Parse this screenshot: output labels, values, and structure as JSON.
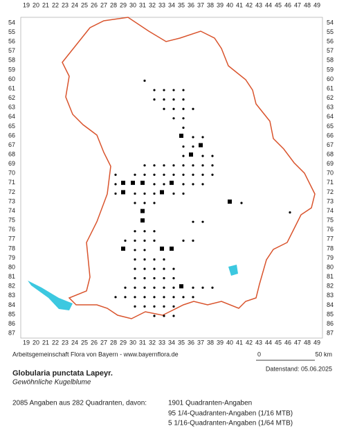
{
  "header": {
    "columns": [
      19,
      20,
      21,
      22,
      23,
      24,
      25,
      26,
      27,
      28,
      29,
      30,
      31,
      32,
      33,
      34,
      35,
      36,
      37,
      38,
      39,
      40,
      41,
      42,
      43,
      44,
      45,
      46,
      47,
      48,
      49
    ],
    "rows": [
      54,
      55,
      56,
      57,
      58,
      59,
      60,
      61,
      62,
      63,
      64,
      65,
      66,
      67,
      68,
      69,
      70,
      71,
      72,
      73,
      74,
      75,
      76,
      77,
      78,
      79,
      80,
      81,
      82,
      83,
      84,
      85,
      86,
      87
    ]
  },
  "map": {
    "dots": [
      [
        31,
        60
      ],
      [
        32,
        61
      ],
      [
        33,
        61
      ],
      [
        34,
        61
      ],
      [
        35,
        61
      ],
      [
        32,
        62
      ],
      [
        33,
        62
      ],
      [
        34,
        62
      ],
      [
        35,
        62
      ],
      [
        33,
        63
      ],
      [
        34,
        63
      ],
      [
        35,
        63
      ],
      [
        36,
        63
      ],
      [
        34,
        64
      ],
      [
        35,
        64
      ],
      [
        35,
        65
      ],
      [
        36,
        66
      ],
      [
        37,
        66
      ],
      [
        35,
        67
      ],
      [
        36,
        67
      ],
      [
        35,
        68
      ],
      [
        37,
        68
      ],
      [
        38,
        68
      ],
      [
        31,
        69
      ],
      [
        32,
        69
      ],
      [
        33,
        69
      ],
      [
        34,
        69
      ],
      [
        35,
        69
      ],
      [
        36,
        69
      ],
      [
        37,
        69
      ],
      [
        38,
        69
      ],
      [
        28,
        70
      ],
      [
        30,
        70
      ],
      [
        31,
        70
      ],
      [
        32,
        70
      ],
      [
        33,
        70
      ],
      [
        34,
        70
      ],
      [
        35,
        70
      ],
      [
        36,
        70
      ],
      [
        37,
        70
      ],
      [
        38,
        70
      ],
      [
        28,
        71
      ],
      [
        32,
        71
      ],
      [
        33,
        71
      ],
      [
        35,
        71
      ],
      [
        36,
        71
      ],
      [
        37,
        71
      ],
      [
        28,
        72
      ],
      [
        30,
        72
      ],
      [
        31,
        72
      ],
      [
        32,
        72
      ],
      [
        34,
        72
      ],
      [
        35,
        72
      ],
      [
        30,
        73
      ],
      [
        31,
        73
      ],
      [
        32,
        73
      ],
      [
        41,
        73
      ],
      [
        46,
        74
      ],
      [
        36,
        75
      ],
      [
        37,
        75
      ],
      [
        30,
        76
      ],
      [
        31,
        76
      ],
      [
        32,
        76
      ],
      [
        29,
        77
      ],
      [
        30,
        77
      ],
      [
        31,
        77
      ],
      [
        32,
        77
      ],
      [
        35,
        77
      ],
      [
        36,
        77
      ],
      [
        30,
        78
      ],
      [
        31,
        78
      ],
      [
        30,
        79
      ],
      [
        31,
        79
      ],
      [
        32,
        79
      ],
      [
        33,
        79
      ],
      [
        30,
        80
      ],
      [
        31,
        80
      ],
      [
        32,
        80
      ],
      [
        33,
        80
      ],
      [
        34,
        80
      ],
      [
        30,
        81
      ],
      [
        31,
        81
      ],
      [
        32,
        81
      ],
      [
        33,
        81
      ],
      [
        34,
        81
      ],
      [
        29,
        82
      ],
      [
        30,
        82
      ],
      [
        31,
        82
      ],
      [
        32,
        82
      ],
      [
        33,
        82
      ],
      [
        34,
        82
      ],
      [
        36,
        82
      ],
      [
        37,
        82
      ],
      [
        38,
        82
      ],
      [
        28,
        83
      ],
      [
        29,
        83
      ],
      [
        30,
        83
      ],
      [
        31,
        83
      ],
      [
        32,
        83
      ],
      [
        33,
        83
      ],
      [
        34,
        83
      ],
      [
        35,
        83
      ],
      [
        36,
        83
      ],
      [
        30,
        84
      ],
      [
        31,
        84
      ],
      [
        32,
        84
      ],
      [
        33,
        84
      ],
      [
        34,
        84
      ],
      [
        32,
        85
      ],
      [
        33,
        85
      ],
      [
        34,
        85
      ]
    ],
    "squares": [
      [
        29,
        71
      ],
      [
        29,
        72
      ],
      [
        30,
        71
      ],
      [
        31,
        71
      ],
      [
        35,
        66
      ],
      [
        36,
        68
      ],
      [
        37,
        67
      ],
      [
        31,
        74
      ],
      [
        31,
        75
      ],
      [
        33,
        72
      ],
      [
        34,
        71
      ],
      [
        40,
        73
      ],
      [
        33,
        78
      ],
      [
        34,
        78
      ],
      [
        29,
        78
      ],
      [
        35,
        82
      ]
    ]
  },
  "footer": {
    "credit": "Arbeitsgemeinschaft Flora von Bayern - www.bayernflora.de",
    "scale_start": "0",
    "scale_end": "50 km",
    "date": "Datenstand: 05.06.2025",
    "title": "Globularia punctata Lapeyr.",
    "subtitle": "Gewöhnliche Kugelblume",
    "summary": "2085 Angaben aus 282 Quadranten, davon:",
    "breakdown": [
      "1901 Quadranten-Angaben",
      "95 1/4-Quadranten-Angaben (1/16 MTB)",
      "5 1/16-Quadranten-Angaben (1/64 MTB)"
    ]
  }
}
